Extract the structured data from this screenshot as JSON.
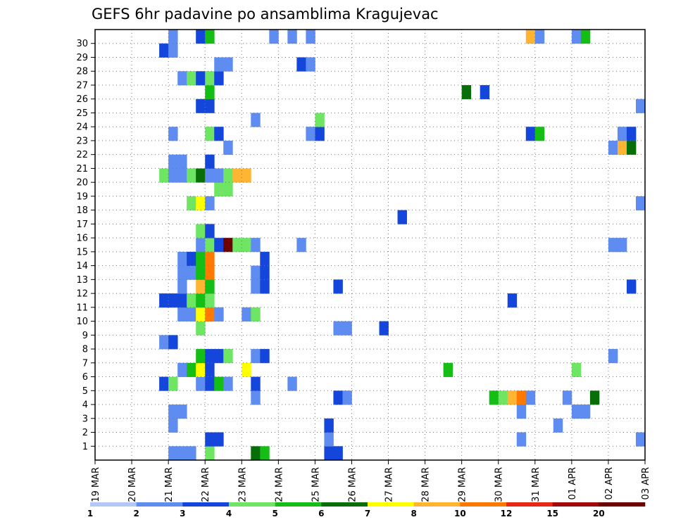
{
  "chart_data": {
    "type": "heatmap",
    "title": "GEFS 6hr padavine po ansamblima Kragujevac",
    "xlabel": "",
    "ylabel": "",
    "x_ticks": [
      "19 MAR",
      "20 MAR",
      "21 MAR",
      "22 MAR",
      "23 MAR",
      "24 MAR",
      "25 MAR",
      "26 MAR",
      "27 MAR",
      "28 MAR",
      "29 MAR",
      "30 MAR",
      "31 MAR",
      "01 APR",
      "02 APR",
      "03 APR"
    ],
    "y_ticks": [
      "1",
      "2",
      "3",
      "4",
      "5",
      "6",
      "7",
      "8",
      "9",
      "10",
      "11",
      "12",
      "13",
      "14",
      "15",
      "16",
      "17",
      "18",
      "19",
      "20",
      "21",
      "22",
      "23",
      "24",
      "25",
      "26",
      "27",
      "28",
      "29",
      "30"
    ],
    "time_steps_per_day": 4,
    "members": 31,
    "grid": true,
    "colorbar": {
      "position": "bottom",
      "colors": [
        "#b4c8f5",
        "#5f8cf0",
        "#1446dc",
        "#6ee664",
        "#14be14",
        "#086e08",
        "#ffff00",
        "#ffb432",
        "#ff7800",
        "#e62814",
        "#a00a0a",
        "#6e0000"
      ],
      "labels": [
        "1",
        "2",
        "3",
        "4",
        "5",
        "6",
        "7",
        "8",
        "10",
        "12",
        "15",
        "20"
      ]
    },
    "cells": [
      [
        0,
        8,
        1
      ],
      [
        0,
        9,
        1
      ],
      [
        0,
        10,
        1
      ],
      [
        0,
        12,
        3
      ],
      [
        0,
        17,
        5
      ],
      [
        0,
        18,
        4
      ],
      [
        0,
        25,
        2
      ],
      [
        0,
        26,
        2
      ],
      [
        1,
        12,
        2
      ],
      [
        1,
        13,
        2
      ],
      [
        1,
        25,
        1
      ],
      [
        1,
        46,
        1
      ],
      [
        1,
        59,
        1
      ],
      [
        2,
        8,
        1
      ],
      [
        2,
        25,
        2
      ],
      [
        2,
        50,
        1
      ],
      [
        3,
        8,
        1
      ],
      [
        3,
        9,
        1
      ],
      [
        3,
        46,
        1
      ],
      [
        3,
        52,
        1
      ],
      [
        3,
        53,
        1
      ],
      [
        4,
        17,
        1
      ],
      [
        4,
        26,
        2
      ],
      [
        4,
        27,
        1
      ],
      [
        4,
        43,
        4
      ],
      [
        4,
        44,
        3
      ],
      [
        4,
        45,
        7
      ],
      [
        4,
        46,
        8
      ],
      [
        4,
        47,
        1
      ],
      [
        4,
        51,
        1
      ],
      [
        4,
        54,
        5
      ],
      [
        5,
        7,
        2
      ],
      [
        5,
        8,
        3
      ],
      [
        5,
        11,
        1
      ],
      [
        5,
        12,
        2
      ],
      [
        5,
        13,
        4
      ],
      [
        5,
        14,
        1
      ],
      [
        5,
        17,
        2
      ],
      [
        5,
        21,
        1
      ],
      [
        6,
        9,
        1
      ],
      [
        6,
        10,
        4
      ],
      [
        6,
        11,
        6
      ],
      [
        6,
        12,
        2
      ],
      [
        6,
        16,
        6
      ],
      [
        6,
        38,
        4
      ],
      [
        6,
        52,
        3
      ],
      [
        7,
        11,
        4
      ],
      [
        7,
        12,
        2
      ],
      [
        7,
        13,
        2
      ],
      [
        7,
        14,
        3
      ],
      [
        7,
        17,
        1
      ],
      [
        7,
        18,
        2
      ],
      [
        7,
        56,
        1
      ],
      [
        8,
        7,
        1
      ],
      [
        8,
        8,
        2
      ],
      [
        9,
        11,
        3
      ],
      [
        9,
        26,
        1
      ],
      [
        9,
        27,
        1
      ],
      [
        9,
        31,
        2
      ],
      [
        10,
        9,
        1
      ],
      [
        10,
        10,
        1
      ],
      [
        10,
        11,
        6
      ],
      [
        10,
        12,
        8
      ],
      [
        10,
        13,
        1
      ],
      [
        10,
        16,
        1
      ],
      [
        10,
        17,
        3
      ],
      [
        11,
        7,
        2
      ],
      [
        11,
        8,
        2
      ],
      [
        11,
        9,
        2
      ],
      [
        11,
        10,
        3
      ],
      [
        11,
        11,
        4
      ],
      [
        11,
        12,
        3
      ],
      [
        11,
        45,
        2
      ],
      [
        12,
        9,
        1
      ],
      [
        12,
        11,
        7
      ],
      [
        12,
        12,
        4
      ],
      [
        12,
        17,
        1
      ],
      [
        12,
        18,
        2
      ],
      [
        12,
        26,
        2
      ],
      [
        12,
        58,
        2
      ],
      [
        13,
        9,
        1
      ],
      [
        13,
        10,
        1
      ],
      [
        13,
        11,
        4
      ],
      [
        13,
        12,
        8
      ],
      [
        13,
        17,
        1
      ],
      [
        13,
        18,
        2
      ],
      [
        14,
        9,
        1
      ],
      [
        14,
        10,
        2
      ],
      [
        14,
        11,
        4
      ],
      [
        14,
        12,
        8
      ],
      [
        14,
        18,
        2
      ],
      [
        15,
        11,
        1
      ],
      [
        15,
        12,
        3
      ],
      [
        15,
        13,
        2
      ],
      [
        15,
        14,
        11
      ],
      [
        15,
        15,
        3
      ],
      [
        15,
        16,
        3
      ],
      [
        15,
        17,
        1
      ],
      [
        15,
        22,
        1
      ],
      [
        15,
        56,
        1
      ],
      [
        15,
        57,
        1
      ],
      [
        16,
        11,
        3
      ],
      [
        16,
        12,
        2
      ],
      [
        17,
        33,
        2
      ],
      [
        18,
        10,
        3
      ],
      [
        18,
        11,
        6
      ],
      [
        18,
        12,
        1
      ],
      [
        18,
        59,
        1
      ],
      [
        19,
        13,
        3
      ],
      [
        19,
        14,
        3
      ],
      [
        20,
        7,
        3
      ],
      [
        20,
        8,
        1
      ],
      [
        20,
        9,
        1
      ],
      [
        20,
        10,
        3
      ],
      [
        20,
        11,
        5
      ],
      [
        20,
        12,
        1
      ],
      [
        20,
        13,
        1
      ],
      [
        20,
        14,
        3
      ],
      [
        20,
        15,
        7
      ],
      [
        20,
        16,
        7
      ],
      [
        21,
        8,
        1
      ],
      [
        21,
        9,
        1
      ],
      [
        21,
        12,
        2
      ],
      [
        22,
        14,
        1
      ],
      [
        22,
        56,
        1
      ],
      [
        22,
        57,
        7
      ],
      [
        22,
        58,
        5
      ],
      [
        23,
        8,
        1
      ],
      [
        23,
        12,
        3
      ],
      [
        23,
        13,
        2
      ],
      [
        23,
        23,
        1
      ],
      [
        23,
        24,
        2
      ],
      [
        23,
        47,
        2
      ],
      [
        23,
        48,
        4
      ],
      [
        23,
        57,
        1
      ],
      [
        23,
        58,
        2
      ],
      [
        24,
        17,
        1
      ],
      [
        24,
        24,
        3
      ],
      [
        25,
        11,
        2
      ],
      [
        25,
        12,
        2
      ],
      [
        25,
        59,
        1
      ],
      [
        26,
        12,
        4
      ],
      [
        26,
        40,
        5
      ],
      [
        26,
        42,
        2
      ],
      [
        27,
        9,
        1
      ],
      [
        27,
        10,
        3
      ],
      [
        27,
        11,
        2
      ],
      [
        27,
        12,
        3
      ],
      [
        27,
        13,
        2
      ],
      [
        28,
        13,
        1
      ],
      [
        28,
        14,
        1
      ],
      [
        28,
        22,
        2
      ],
      [
        28,
        23,
        1
      ],
      [
        29,
        7,
        2
      ],
      [
        29,
        8,
        1
      ],
      [
        30,
        8,
        1
      ],
      [
        30,
        11,
        2
      ],
      [
        30,
        12,
        4
      ],
      [
        30,
        19,
        1
      ],
      [
        30,
        21,
        1
      ],
      [
        30,
        23,
        1
      ],
      [
        30,
        47,
        7
      ],
      [
        30,
        48,
        1
      ],
      [
        30,
        52,
        1
      ],
      [
        30,
        53,
        4
      ]
    ]
  }
}
